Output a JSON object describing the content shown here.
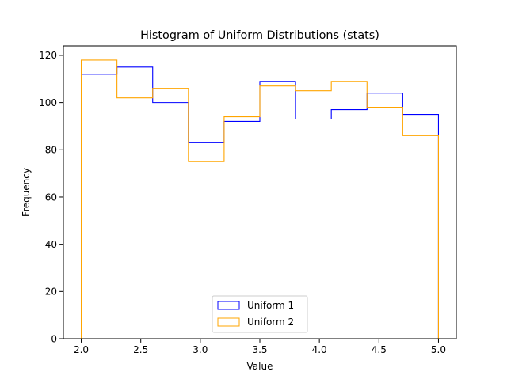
{
  "chart_data": {
    "type": "histogram",
    "title": "Histogram of Uniform Distributions (stats)",
    "xlabel": "Value",
    "ylabel": "Frequency",
    "xlim": [
      1.85,
      5.15
    ],
    "ylim": [
      0,
      124
    ],
    "x_ticks": [
      2.0,
      2.5,
      3.0,
      3.5,
      4.0,
      4.5,
      5.0
    ],
    "y_ticks": [
      0,
      20,
      40,
      60,
      80,
      100,
      120
    ],
    "bin_edges": [
      2.0,
      2.3,
      2.6,
      2.9,
      3.2,
      3.5,
      3.8,
      4.1,
      4.4,
      4.7,
      5.0
    ],
    "histtype": "step",
    "grid": false,
    "legend_position": "lower center",
    "series": [
      {
        "name": "Uniform 1",
        "color": "#0000ff",
        "counts": [
          112,
          115,
          100,
          83,
          92,
          109,
          93,
          97,
          104,
          95
        ]
      },
      {
        "name": "Uniform 2",
        "color": "#ffa500",
        "counts": [
          118,
          102,
          106,
          75,
          94,
          107,
          105,
          109,
          98,
          86
        ]
      }
    ]
  }
}
